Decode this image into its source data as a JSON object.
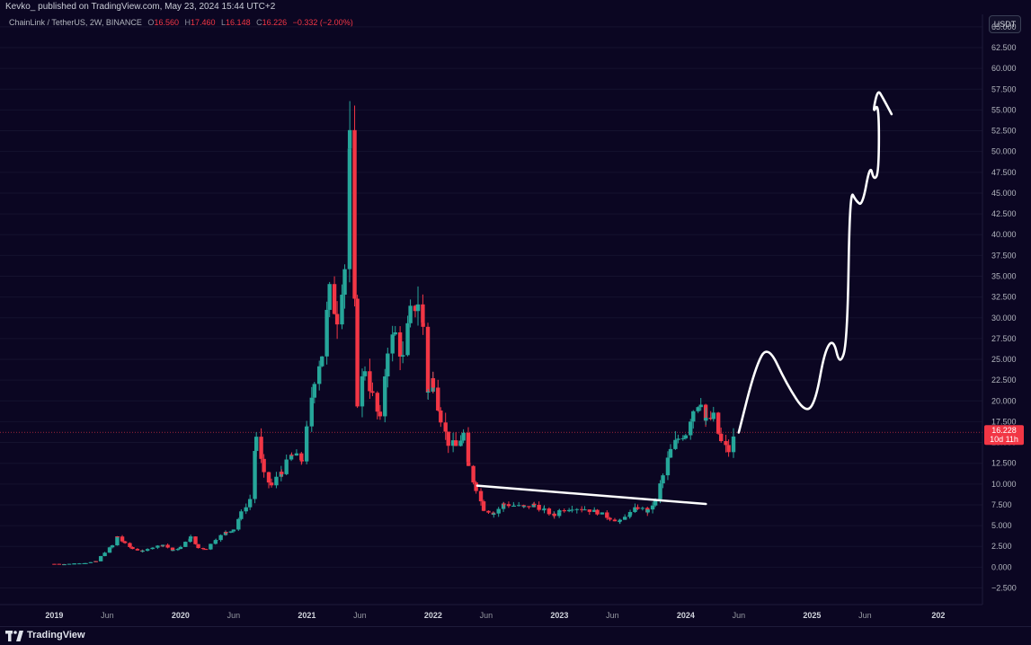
{
  "header": {
    "published_by": "Kevko_ published on TradingView.com, May 23, 2024 15:44 UTC+2"
  },
  "legend": {
    "symbol": "ChainLink / TetherUS, 2W, BINANCE",
    "o_label": "O",
    "o_value": "16.560",
    "h_label": "H",
    "h_value": "17.460",
    "l_label": "L",
    "l_value": "16.148",
    "c_label": "C",
    "c_value": "16.226",
    "change": "−0.332 (−2.00%)"
  },
  "currency_button": "USDT",
  "footer": {
    "brand": "TradingView"
  },
  "colors": {
    "background": "#0b0622",
    "up": "#26a69a",
    "down": "#f23645",
    "drawing": "#ffffff",
    "price_tag": "#f23645"
  },
  "chart_data": {
    "type": "candlestick",
    "title": "ChainLink / TetherUS, 2W, BINANCE",
    "ylim": [
      -4.5,
      66.5
    ],
    "y_ticks": [
      "65.000",
      "62.500",
      "60.000",
      "57.500",
      "55.000",
      "52.500",
      "50.000",
      "47.500",
      "45.000",
      "42.500",
      "40.000",
      "37.500",
      "35.000",
      "32.500",
      "30.000",
      "27.500",
      "25.000",
      "22.500",
      "20.000",
      "17.500",
      "15.000",
      "12.500",
      "10.000",
      "7.500",
      "5.000",
      "2.500",
      "0.000",
      "−2.500"
    ],
    "y_tick_values": [
      65,
      62.5,
      60,
      57.5,
      55,
      52.5,
      50,
      47.5,
      45,
      42.5,
      40,
      37.5,
      35,
      32.5,
      30,
      27.5,
      25,
      22.5,
      20,
      17.5,
      15,
      12.5,
      10,
      7.5,
      5,
      2.5,
      0,
      -2.5
    ],
    "x_ticks": [
      {
        "label": "2019",
        "t": 2019.0,
        "bold": true
      },
      {
        "label": "Jun",
        "t": 2019.42,
        "bold": false
      },
      {
        "label": "2020",
        "t": 2020.0,
        "bold": true
      },
      {
        "label": "Jun",
        "t": 2020.42,
        "bold": false
      },
      {
        "label": "2021",
        "t": 2021.0,
        "bold": true
      },
      {
        "label": "Jun",
        "t": 2021.42,
        "bold": false
      },
      {
        "label": "2022",
        "t": 2022.0,
        "bold": true
      },
      {
        "label": "Jun",
        "t": 2022.42,
        "bold": false
      },
      {
        "label": "2023",
        "t": 2023.0,
        "bold": true
      },
      {
        "label": "Jun",
        "t": 2023.42,
        "bold": false
      },
      {
        "label": "2024",
        "t": 2024.0,
        "bold": true
      },
      {
        "label": "Jun",
        "t": 2024.42,
        "bold": false
      },
      {
        "label": "2025",
        "t": 2025.0,
        "bold": true
      },
      {
        "label": "Jun",
        "t": 2025.42,
        "bold": false
      },
      {
        "label": "202",
        "t": 2026.0,
        "bold": true
      }
    ],
    "xlim": [
      2018.57,
      2026.35
    ],
    "last_price": "16.228",
    "last_price_value": 16.228,
    "countdown": "10d 11h",
    "close_path": [
      [
        2019.0,
        0.4
      ],
      [
        2019.08,
        0.35
      ],
      [
        2019.16,
        0.45
      ],
      [
        2019.25,
        0.5
      ],
      [
        2019.33,
        0.7
      ],
      [
        2019.4,
        1.8
      ],
      [
        2019.46,
        2.6
      ],
      [
        2019.5,
        3.7
      ],
      [
        2019.56,
        2.8
      ],
      [
        2019.62,
        2.2
      ],
      [
        2019.7,
        1.9
      ],
      [
        2019.78,
        2.4
      ],
      [
        2019.86,
        2.7
      ],
      [
        2019.94,
        2.0
      ],
      [
        2020.0,
        2.4
      ],
      [
        2020.08,
        3.6
      ],
      [
        2020.14,
        2.3
      ],
      [
        2020.2,
        2.2
      ],
      [
        2020.28,
        3.4
      ],
      [
        2020.36,
        4.2
      ],
      [
        2020.42,
        4.6
      ],
      [
        2020.48,
        6.5
      ],
      [
        2020.55,
        8.2
      ],
      [
        2020.6,
        15.8
      ],
      [
        2020.66,
        11.0
      ],
      [
        2020.72,
        9.8
      ],
      [
        2020.8,
        11.6
      ],
      [
        2020.88,
        13.4
      ],
      [
        2020.96,
        13.0
      ],
      [
        2021.0,
        16.5
      ],
      [
        2021.06,
        22.8
      ],
      [
        2021.12,
        25.7
      ],
      [
        2021.18,
        33.0
      ],
      [
        2021.24,
        30.1
      ],
      [
        2021.3,
        36.3
      ],
      [
        2021.34,
        51.0
      ],
      [
        2021.4,
        20.0
      ],
      [
        2021.46,
        24.0
      ],
      [
        2021.52,
        20.5
      ],
      [
        2021.58,
        17.5
      ],
      [
        2021.64,
        26.5
      ],
      [
        2021.7,
        28.0
      ],
      [
        2021.76,
        25.0
      ],
      [
        2021.82,
        30.5
      ],
      [
        2021.88,
        32.0
      ],
      [
        2021.92,
        29.0
      ],
      [
        2021.96,
        21.0
      ],
      [
        2022.0,
        22.5
      ],
      [
        2022.06,
        18.0
      ],
      [
        2022.12,
        15.0
      ],
      [
        2022.18,
        14.5
      ],
      [
        2022.24,
        16.0
      ],
      [
        2022.28,
        12.0
      ],
      [
        2022.34,
        9.5
      ],
      [
        2022.4,
        7.0
      ],
      [
        2022.48,
        6.5
      ],
      [
        2022.56,
        7.6
      ],
      [
        2022.64,
        7.4
      ],
      [
        2022.72,
        7.2
      ],
      [
        2022.8,
        7.5
      ],
      [
        2022.88,
        6.8
      ],
      [
        2022.96,
        6.2
      ],
      [
        2023.0,
        6.8
      ],
      [
        2023.1,
        7.2
      ],
      [
        2023.2,
        7.0
      ],
      [
        2023.3,
        6.6
      ],
      [
        2023.4,
        5.9
      ],
      [
        2023.48,
        5.5
      ],
      [
        2023.56,
        6.5
      ],
      [
        2023.62,
        7.2
      ],
      [
        2023.7,
        6.7
      ],
      [
        2023.76,
        8.0
      ],
      [
        2023.82,
        11.0
      ],
      [
        2023.88,
        14.0
      ],
      [
        2023.94,
        15.5
      ],
      [
        2024.0,
        16.2
      ],
      [
        2024.06,
        19.0
      ],
      [
        2024.12,
        20.2
      ],
      [
        2024.16,
        17.5
      ],
      [
        2024.22,
        18.0
      ],
      [
        2024.28,
        15.0
      ],
      [
        2024.34,
        14.0
      ],
      [
        2024.4,
        16.2
      ]
    ],
    "drawings": {
      "trendline": {
        "from": [
          2022.35,
          9.8
        ],
        "to": [
          2024.16,
          7.6
        ]
      },
      "projection": [
        [
          2024.42,
          16.2
        ],
        [
          2024.55,
          24.0
        ],
        [
          2024.65,
          26.8
        ],
        [
          2024.8,
          22.0
        ],
        [
          2024.95,
          18.5
        ],
        [
          2025.03,
          20.0
        ],
        [
          2025.1,
          26.0
        ],
        [
          2025.17,
          27.5
        ],
        [
          2025.22,
          24.2
        ],
        [
          2025.28,
          27.0
        ],
        [
          2025.3,
          45.5
        ],
        [
          2025.35,
          44.0
        ],
        [
          2025.4,
          43.5
        ],
        [
          2025.46,
          48.5
        ],
        [
          2025.49,
          46.5
        ],
        [
          2025.53,
          47.5
        ],
        [
          2025.53,
          56.0
        ],
        [
          2025.48,
          54.5
        ],
        [
          2025.52,
          57.5
        ],
        [
          2025.56,
          56.5
        ],
        [
          2025.63,
          54.5
        ]
      ]
    }
  }
}
